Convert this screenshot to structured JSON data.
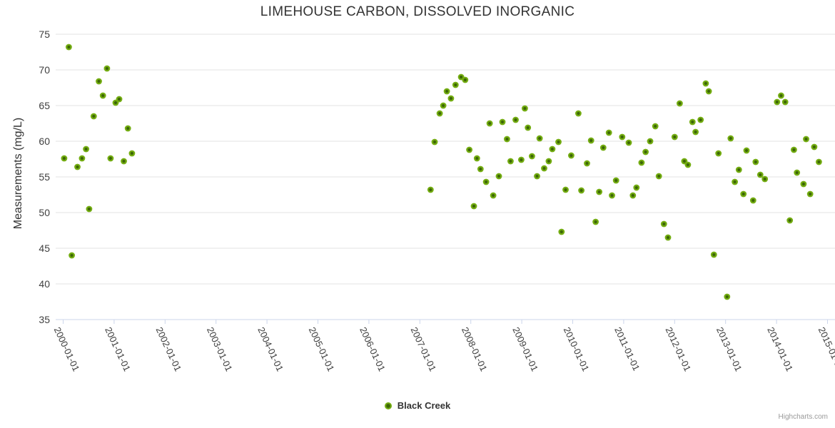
{
  "credit": {
    "label": "Highcharts.com"
  },
  "colors": {
    "marker_outer": "#73ac11",
    "marker_inner": "#3c6606",
    "grid": "#e3e3e3",
    "axis_line": "#ccd6eb",
    "title_text": "#333333",
    "label_text": "#3f3f3f",
    "credit_text": "#999999",
    "background": "#ffffff"
  },
  "chart_data": {
    "type": "scatter",
    "title": "LIMEHOUSE CARBON, DISSOLVED INORGANIC",
    "xlabel": "",
    "ylabel": "Measurements (mg/L)",
    "ylim": [
      35,
      75
    ],
    "y_ticks": [
      35,
      40,
      45,
      50,
      55,
      60,
      65,
      70,
      75
    ],
    "x_tick_labels": [
      "2000-01-01",
      "2001-01-01",
      "2002-01-01",
      "2003-01-01",
      "2004-01-01",
      "2005-01-01",
      "2006-01-01",
      "2007-01-01",
      "2008-01-01",
      "2009-01-01",
      "2010-01-01",
      "2011-01-01",
      "2012-01-01",
      "2013-01-01",
      "2014-01-01",
      "2015-01-01"
    ],
    "x_unit": "decimal_year",
    "grid": "horizontal",
    "legend_position": "bottom-center",
    "series": [
      {
        "name": "Black Creek",
        "points": [
          [
            2000.02,
            57.6
          ],
          [
            2000.11,
            73.2
          ],
          [
            2000.17,
            44.0
          ],
          [
            2000.28,
            56.4
          ],
          [
            2000.37,
            57.6
          ],
          [
            2000.45,
            58.9
          ],
          [
            2000.51,
            50.5
          ],
          [
            2000.6,
            63.5
          ],
          [
            2000.7,
            68.4
          ],
          [
            2000.78,
            66.4
          ],
          [
            2000.86,
            70.2
          ],
          [
            2000.93,
            57.6
          ],
          [
            2001.03,
            65.4
          ],
          [
            2001.1,
            65.9
          ],
          [
            2001.19,
            57.2
          ],
          [
            2001.27,
            61.8
          ],
          [
            2001.35,
            58.3
          ],
          [
            2007.21,
            53.2
          ],
          [
            2007.29,
            59.9
          ],
          [
            2007.39,
            63.9
          ],
          [
            2007.46,
            65.0
          ],
          [
            2007.53,
            67.0
          ],
          [
            2007.61,
            66.0
          ],
          [
            2007.7,
            67.9
          ],
          [
            2007.81,
            69.0
          ],
          [
            2007.89,
            68.6
          ],
          [
            2007.97,
            58.8
          ],
          [
            2008.06,
            50.9
          ],
          [
            2008.12,
            57.6
          ],
          [
            2008.19,
            56.1
          ],
          [
            2008.3,
            54.3
          ],
          [
            2008.37,
            62.5
          ],
          [
            2008.44,
            52.4
          ],
          [
            2008.55,
            55.1
          ],
          [
            2008.62,
            62.7
          ],
          [
            2008.71,
            60.3
          ],
          [
            2008.78,
            57.2
          ],
          [
            2008.88,
            63.0
          ],
          [
            2008.99,
            57.4
          ],
          [
            2009.06,
            64.6
          ],
          [
            2009.12,
            61.9
          ],
          [
            2009.2,
            57.9
          ],
          [
            2009.3,
            55.1
          ],
          [
            2009.35,
            60.4
          ],
          [
            2009.44,
            56.2
          ],
          [
            2009.53,
            57.2
          ],
          [
            2009.6,
            58.9
          ],
          [
            2009.72,
            59.9
          ],
          [
            2009.78,
            47.3
          ],
          [
            2009.86,
            53.2
          ],
          [
            2009.97,
            58.0
          ],
          [
            2010.11,
            63.9
          ],
          [
            2010.17,
            53.1
          ],
          [
            2010.28,
            56.9
          ],
          [
            2010.36,
            60.1
          ],
          [
            2010.45,
            48.7
          ],
          [
            2010.52,
            52.9
          ],
          [
            2010.6,
            59.1
          ],
          [
            2010.71,
            61.2
          ],
          [
            2010.77,
            52.4
          ],
          [
            2010.85,
            54.5
          ],
          [
            2010.97,
            60.6
          ],
          [
            2011.1,
            59.8
          ],
          [
            2011.18,
            52.4
          ],
          [
            2011.25,
            53.5
          ],
          [
            2011.35,
            57.0
          ],
          [
            2011.43,
            58.5
          ],
          [
            2011.52,
            60.0
          ],
          [
            2011.62,
            62.1
          ],
          [
            2011.69,
            55.1
          ],
          [
            2011.79,
            48.4
          ],
          [
            2011.87,
            46.5
          ],
          [
            2012.0,
            60.6
          ],
          [
            2012.1,
            65.3
          ],
          [
            2012.19,
            57.2
          ],
          [
            2012.26,
            56.7
          ],
          [
            2012.35,
            62.7
          ],
          [
            2012.41,
            61.3
          ],
          [
            2012.51,
            63.0
          ],
          [
            2012.61,
            68.1
          ],
          [
            2012.67,
            67.0
          ],
          [
            2012.77,
            44.1
          ],
          [
            2012.86,
            58.3
          ],
          [
            2013.03,
            38.2
          ],
          [
            2013.1,
            60.4
          ],
          [
            2013.18,
            54.3
          ],
          [
            2013.26,
            56.0
          ],
          [
            2013.35,
            52.6
          ],
          [
            2013.41,
            58.7
          ],
          [
            2013.54,
            51.7
          ],
          [
            2013.59,
            57.1
          ],
          [
            2013.68,
            55.3
          ],
          [
            2013.77,
            54.7
          ],
          [
            2014.01,
            65.5
          ],
          [
            2014.09,
            66.4
          ],
          [
            2014.17,
            65.5
          ],
          [
            2014.26,
            48.9
          ],
          [
            2014.34,
            58.8
          ],
          [
            2014.4,
            55.6
          ],
          [
            2014.53,
            54.0
          ],
          [
            2014.58,
            60.3
          ],
          [
            2014.66,
            52.6
          ],
          [
            2014.74,
            59.2
          ],
          [
            2014.83,
            57.1
          ]
        ]
      }
    ]
  }
}
